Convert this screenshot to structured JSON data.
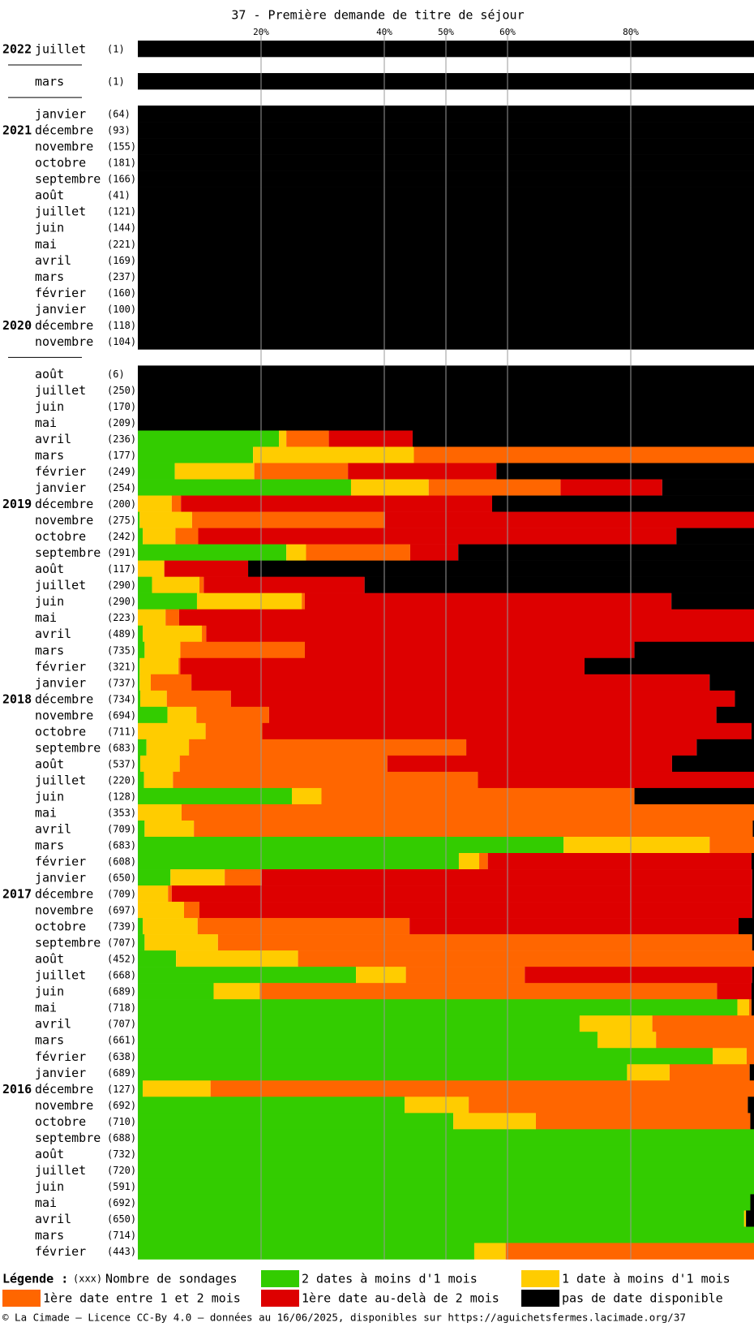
{
  "chart_data": {
    "type": "stacked-bar",
    "title": "37 - Première demande de titre de séjour",
    "xlim": [
      0,
      100
    ],
    "xticks": [
      {
        "value": 20,
        "label": "20%"
      },
      {
        "value": 40,
        "label": "40%"
      },
      {
        "value": 50,
        "label": "50%"
      },
      {
        "value": 60,
        "label": "60%"
      },
      {
        "value": 80,
        "label": "80%"
      }
    ],
    "grid": true,
    "series": [
      {
        "name": "2 dates à moins d'1 mois",
        "color": "#33cc00"
      },
      {
        "name": "1 date à moins d'1 mois",
        "color": "#ffcc00"
      },
      {
        "name": "1ère date entre 1 et 2 mois",
        "color": "#ff6600"
      },
      {
        "name": "1ère date au-delà de 2 mois",
        "color": "#dd0000"
      },
      {
        "name": "pas de date disponible",
        "color": "#000000"
      }
    ],
    "legend": {
      "title": "Légende :",
      "count_key": "(xxx)",
      "count_label": "Nombre de sondages"
    },
    "footer": "© La Cimade – Licence CC-By 4.0 – données au 16/06/2025, disponibles sur https://aguichetsfermes.lacimade.org/37",
    "groups": [
      {
        "rows": [
          {
            "year": "2022",
            "month": "juillet",
            "count": "(1)",
            "values": [
              0,
              0,
              0,
              0,
              100
            ]
          }
        ]
      },
      {
        "rows": [
          {
            "month": "mars",
            "count": "(1)",
            "values": [
              0,
              0,
              0,
              0,
              100
            ]
          }
        ]
      },
      {
        "rows": [
          {
            "month": "janvier",
            "count": "(64)",
            "values": [
              0,
              0,
              0,
              0,
              100
            ]
          },
          {
            "year": "2021",
            "month": "décembre",
            "count": "(93)",
            "values": [
              0,
              0,
              0,
              0,
              100
            ]
          },
          {
            "month": "novembre",
            "count": "(155)",
            "values": [
              0,
              0,
              0,
              0,
              100
            ]
          },
          {
            "month": "octobre",
            "count": "(181)",
            "values": [
              0,
              0,
              0,
              0,
              100
            ]
          },
          {
            "month": "septembre",
            "count": "(166)",
            "values": [
              0,
              0,
              0,
              0,
              100
            ]
          },
          {
            "month": "août",
            "count": "(41)",
            "values": [
              0,
              0,
              0,
              0,
              100
            ]
          },
          {
            "month": "juillet",
            "count": "(121)",
            "values": [
              0,
              0,
              0,
              0,
              100
            ]
          },
          {
            "month": "juin",
            "count": "(144)",
            "values": [
              0,
              0,
              0,
              0,
              100
            ]
          },
          {
            "month": "mai",
            "count": "(221)",
            "values": [
              0,
              0,
              0,
              0,
              100
            ]
          },
          {
            "month": "avril",
            "count": "(169)",
            "values": [
              0,
              0,
              0,
              0,
              100
            ]
          },
          {
            "month": "mars",
            "count": "(237)",
            "values": [
              0,
              0,
              0,
              0,
              100
            ]
          },
          {
            "month": "février",
            "count": "(160)",
            "values": [
              0,
              0,
              0,
              0,
              100
            ]
          },
          {
            "month": "janvier",
            "count": "(100)",
            "values": [
              0,
              0,
              0,
              0,
              100
            ]
          },
          {
            "year": "2020",
            "month": "décembre",
            "count": "(118)",
            "values": [
              0,
              0,
              0,
              0,
              100
            ]
          },
          {
            "month": "novembre",
            "count": "(104)",
            "values": [
              0,
              0,
              0,
              0,
              100
            ]
          }
        ]
      },
      {
        "rows": [
          {
            "month": "août",
            "count": "(6)",
            "values": [
              0,
              0,
              0,
              0,
              100
            ]
          },
          {
            "month": "juillet",
            "count": "(250)",
            "values": [
              0,
              0,
              0,
              0,
              100
            ]
          },
          {
            "month": "juin",
            "count": "(170)",
            "values": [
              0,
              0,
              0,
              0,
              100
            ]
          },
          {
            "month": "mai",
            "count": "(209)",
            "values": [
              0,
              0,
              0,
              0,
              100
            ]
          },
          {
            "month": "avril",
            "count": "(236)",
            "values": [
              22.9,
              1.2,
              6.9,
              13.6,
              55.4
            ]
          },
          {
            "month": "mars",
            "count": "(177)",
            "values": [
              18.7,
              26.1,
              55.2,
              0,
              0
            ]
          },
          {
            "month": "février",
            "count": "(249)",
            "values": [
              6.0,
              12.9,
              15.2,
              24.1,
              41.8
            ]
          },
          {
            "month": "janvier",
            "count": "(254)",
            "values": [
              34.6,
              12.6,
              21.4,
              16.5,
              14.9
            ]
          },
          {
            "year": "2019",
            "month": "décembre",
            "count": "(200)",
            "values": [
              0,
              5.5,
              1.5,
              50.5,
              42.5
            ]
          },
          {
            "month": "novembre",
            "count": "(275)",
            "values": [
              0.3,
              8.5,
              31.3,
              59.9,
              0
            ]
          },
          {
            "month": "octobre",
            "count": "(242)",
            "values": [
              0.8,
              5.3,
              3.7,
              77.6,
              12.6
            ]
          },
          {
            "month": "septembre",
            "count": "(291)",
            "values": [
              24.1,
              3.2,
              16.9,
              7.8,
              48.0
            ]
          },
          {
            "month": "août",
            "count": "(117)",
            "values": [
              0,
              4.3,
              0,
              13.6,
              82.1
            ]
          },
          {
            "month": "juillet",
            "count": "(290)",
            "values": [
              2.3,
              7.7,
              0.7,
              26.1,
              63.2
            ]
          },
          {
            "month": "juin",
            "count": "(290)",
            "values": [
              9.6,
              17.0,
              0.5,
              59.5,
              13.4
            ]
          },
          {
            "month": "mai",
            "count": "(223)",
            "values": [
              0,
              4.5,
              2.2,
              93.3,
              0
            ]
          },
          {
            "month": "avril",
            "count": "(489)",
            "values": [
              0.8,
              9.6,
              0.7,
              88.9,
              0
            ]
          },
          {
            "month": "mars",
            "count": "(735)",
            "values": [
              1.1,
              5.8,
              20.2,
              53.5,
              19.4
            ]
          },
          {
            "month": "février",
            "count": "(321)",
            "values": [
              0.3,
              6.3,
              0.3,
              65.6,
              27.5
            ]
          },
          {
            "month": "janvier",
            "count": "(737)",
            "values": [
              0.3,
              1.8,
              6.6,
              84.1,
              7.2
            ]
          },
          {
            "year": "2018",
            "month": "décembre",
            "count": "(734)",
            "values": [
              0.4,
              4.3,
              10.4,
              81.8,
              3.1
            ]
          },
          {
            "month": "novembre",
            "count": "(694)",
            "values": [
              4.8,
              4.7,
              11.8,
              72.6,
              6.1
            ]
          },
          {
            "month": "octobre",
            "count": "(711)",
            "values": [
              0,
              11.0,
              9.2,
              79.4,
              0.4
            ]
          },
          {
            "month": "septembre",
            "count": "(683)",
            "values": [
              1.4,
              6.9,
              45.0,
              37.4,
              9.3
            ]
          },
          {
            "month": "août",
            "count": "(537)",
            "values": [
              0.4,
              6.4,
              33.7,
              46.2,
              13.3
            ]
          },
          {
            "month": "juillet",
            "count": "(220)",
            "values": [
              1.0,
              4.7,
              49.5,
              44.8,
              0
            ]
          },
          {
            "month": "juin",
            "count": "(128)",
            "values": [
              25.0,
              4.8,
              50.8,
              0,
              19.4
            ]
          },
          {
            "month": "mai",
            "count": "(353)",
            "values": [
              0,
              7.1,
              92.9,
              0,
              0
            ]
          },
          {
            "month": "avril",
            "count": "(709)",
            "values": [
              1.1,
              8.0,
              90.7,
              0,
              0.2
            ]
          },
          {
            "month": "mars",
            "count": "(683)",
            "values": [
              69.1,
              23.7,
              7.2,
              0,
              0
            ]
          },
          {
            "month": "février",
            "count": "(608)",
            "values": [
              52.1,
              3.3,
              1.4,
              42.8,
              0.4
            ]
          },
          {
            "month": "janvier",
            "count": "(650)",
            "values": [
              5.3,
              8.8,
              6.0,
              79.6,
              0.3
            ]
          },
          {
            "year": "2017",
            "month": "décembre",
            "count": "(709)",
            "values": [
              0,
              4.9,
              0.6,
              94.2,
              0.3
            ]
          },
          {
            "month": "novembre",
            "count": "(697)",
            "values": [
              0,
              7.5,
              2.5,
              89.7,
              0.3
            ]
          },
          {
            "month": "octobre",
            "count": "(739)",
            "values": [
              0.8,
              8.9,
              34.4,
              53.4,
              2.5
            ]
          },
          {
            "month": "septembre",
            "count": "(707)",
            "values": [
              1.1,
              11.9,
              86.7,
              0,
              0.3
            ]
          },
          {
            "month": "août",
            "count": "(452)",
            "values": [
              6.2,
              19.8,
              74.0,
              0,
              0
            ]
          },
          {
            "month": "juillet",
            "count": "(668)",
            "values": [
              35.4,
              8.1,
              19.3,
              36.9,
              0.3
            ]
          },
          {
            "month": "juin",
            "count": "(689)",
            "values": [
              12.3,
              7.5,
              74.2,
              5.6,
              0.4
            ]
          },
          {
            "month": "mai",
            "count": "(718)",
            "values": [
              97.3,
              1.9,
              0.4,
              0,
              0.4
            ]
          },
          {
            "month": "avril",
            "count": "(707)",
            "values": [
              71.7,
              11.8,
              16.5,
              0,
              0
            ]
          },
          {
            "month": "mars",
            "count": "(661)",
            "values": [
              74.6,
              9.5,
              15.9,
              0,
              0
            ]
          },
          {
            "month": "février",
            "count": "(638)",
            "values": [
              93.3,
              5.5,
              1.2,
              0,
              0
            ]
          },
          {
            "month": "janvier",
            "count": "(689)",
            "values": [
              79.4,
              6.9,
              13.0,
              0,
              0.7
            ]
          },
          {
            "year": "2016",
            "month": "décembre",
            "count": "(127)",
            "values": [
              0.8,
              11.0,
              88.2,
              0,
              0
            ]
          },
          {
            "month": "novembre",
            "count": "(692)",
            "values": [
              43.3,
              10.4,
              45.3,
              0,
              1.0
            ]
          },
          {
            "month": "octobre",
            "count": "(710)",
            "values": [
              51.2,
              13.4,
              34.8,
              0,
              0.6
            ]
          },
          {
            "month": "septembre",
            "count": "(688)",
            "values": [
              100,
              0,
              0,
              0,
              0
            ]
          },
          {
            "month": "août",
            "count": "(732)",
            "values": [
              100,
              0,
              0,
              0,
              0
            ]
          },
          {
            "month": "juillet",
            "count": "(720)",
            "values": [
              100,
              0,
              0,
              0,
              0
            ]
          },
          {
            "month": "juin",
            "count": "(591)",
            "values": [
              100,
              0,
              0,
              0,
              0
            ]
          },
          {
            "month": "mai",
            "count": "(692)",
            "values": [
              99.4,
              0,
              0,
              0,
              0.6
            ]
          },
          {
            "month": "avril",
            "count": "(650)",
            "values": [
              98.4,
              0.3,
              0,
              0,
              1.3
            ]
          },
          {
            "month": "mars",
            "count": "(714)",
            "values": [
              100,
              0,
              0,
              0,
              0
            ]
          },
          {
            "month": "février",
            "count": "(443)",
            "values": [
              54.6,
              5.1,
              40.3,
              0,
              0
            ]
          }
        ]
      }
    ]
  }
}
